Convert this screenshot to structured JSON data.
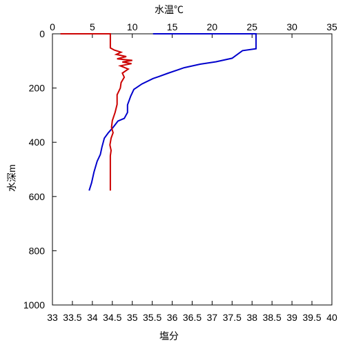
{
  "chart_data": {
    "type": "line",
    "top_axis": {
      "label": "水温℃",
      "color": "#0000cc",
      "range": [
        0,
        35
      ],
      "ticks": [
        0,
        5,
        10,
        15,
        20,
        25,
        30,
        35
      ]
    },
    "bottom_axis": {
      "label": "塩分",
      "color": "#cc0000",
      "range": [
        33,
        40
      ],
      "ticks": [
        33,
        33.5,
        34,
        34.5,
        35,
        35.5,
        36,
        36.5,
        37,
        37.5,
        38,
        38.5,
        39,
        39.5,
        40
      ]
    },
    "y_axis": {
      "label": "水深m",
      "range": [
        0,
        1000
      ],
      "inverted": true,
      "ticks": [
        0,
        200,
        400,
        600,
        800,
        1000
      ]
    },
    "grid": false,
    "series": [
      {
        "axis": "top",
        "color": "#0000cc",
        "points": [
          [
            12.6,
            0
          ],
          [
            25.5,
            0
          ],
          [
            25.5,
            18
          ],
          [
            25.5,
            55
          ],
          [
            23.8,
            62
          ],
          [
            22.5,
            90
          ],
          [
            20.5,
            103
          ],
          [
            18.5,
            112
          ],
          [
            16.5,
            125
          ],
          [
            14.5,
            145
          ],
          [
            13.3,
            158
          ],
          [
            12.6,
            165
          ],
          [
            11.2,
            185
          ],
          [
            10.2,
            205
          ],
          [
            9.8,
            230
          ],
          [
            9.4,
            262
          ],
          [
            9.4,
            290
          ],
          [
            9.0,
            312
          ],
          [
            8.2,
            322
          ],
          [
            7.6,
            345
          ],
          [
            7.0,
            365
          ],
          [
            6.5,
            385
          ],
          [
            6.2,
            418
          ],
          [
            6.0,
            445
          ],
          [
            5.6,
            470
          ],
          [
            5.2,
            510
          ],
          [
            4.9,
            550
          ],
          [
            4.6,
            578
          ]
        ]
      },
      {
        "axis": "bottom",
        "color": "#cc0000",
        "points": [
          [
            33.2,
            0
          ],
          [
            34.45,
            0
          ],
          [
            34.45,
            8
          ],
          [
            34.45,
            52
          ],
          [
            34.55,
            60
          ],
          [
            34.72,
            68
          ],
          [
            34.6,
            76
          ],
          [
            34.85,
            84
          ],
          [
            34.62,
            92
          ],
          [
            35.0,
            98
          ],
          [
            34.75,
            104
          ],
          [
            34.98,
            110
          ],
          [
            34.7,
            118
          ],
          [
            34.9,
            130
          ],
          [
            34.75,
            145
          ],
          [
            34.8,
            160
          ],
          [
            34.72,
            180
          ],
          [
            34.7,
            200
          ],
          [
            34.62,
            225
          ],
          [
            34.62,
            260
          ],
          [
            34.57,
            290
          ],
          [
            34.5,
            320
          ],
          [
            34.48,
            345
          ],
          [
            34.52,
            365
          ],
          [
            34.47,
            385
          ],
          [
            34.44,
            410
          ],
          [
            34.47,
            430
          ],
          [
            34.45,
            450
          ],
          [
            34.45,
            578
          ]
        ]
      }
    ]
  }
}
